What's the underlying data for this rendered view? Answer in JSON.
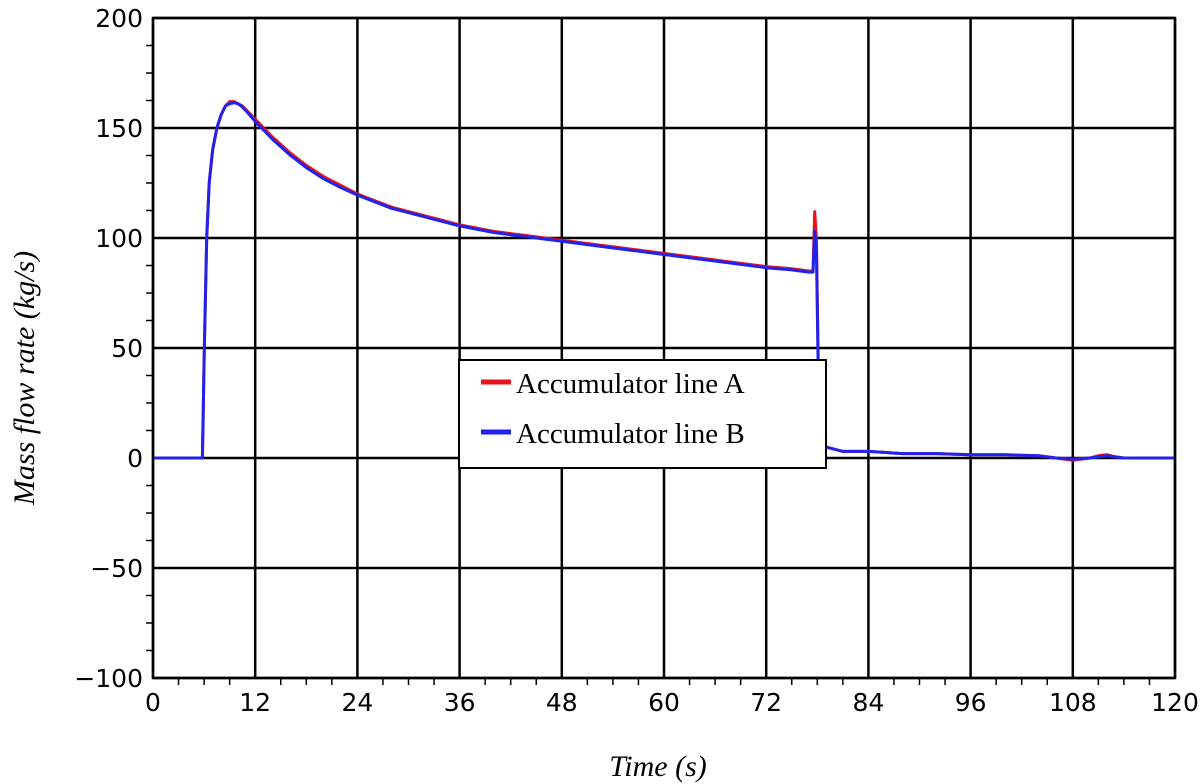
{
  "chart_data": {
    "type": "line",
    "title": "",
    "xlabel": "Time (s)",
    "ylabel": "Mass flow rate (kg/s)",
    "xlim": [
      0,
      120
    ],
    "ylim": [
      -100,
      200
    ],
    "x_ticks": [
      0,
      12,
      24,
      36,
      48,
      60,
      72,
      84,
      96,
      108,
      120
    ],
    "x_tick_labels": [
      "0",
      "12",
      "24",
      "36",
      "48",
      "60",
      "72",
      "84",
      "96",
      "108",
      "120"
    ],
    "y_ticks": [
      -100,
      -50,
      0,
      50,
      100,
      150,
      200
    ],
    "y_tick_labels": [
      "−100",
      "−50",
      "0",
      "50",
      "100",
      "150",
      "200"
    ],
    "grid": true,
    "legend_position": "center",
    "series": [
      {
        "name": "Accumulator line A",
        "color": "#e8141c",
        "x": [
          0,
          5.8,
          5.9,
          6.0,
          6.3,
          6.6,
          7.0,
          7.5,
          8.0,
          8.5,
          9.0,
          9.5,
          10.0,
          10.5,
          11.0,
          12.0,
          14.0,
          16.0,
          18.0,
          20.0,
          22.0,
          24.0,
          26.0,
          28.0,
          30.0,
          33.0,
          36.0,
          40.0,
          44.0,
          48.0,
          52.0,
          56.0,
          60.0,
          64.0,
          68.0,
          72.0,
          75.0,
          77.0,
          77.5,
          77.7,
          77.9,
          78.1,
          78.3,
          78.5,
          79.0,
          80.0,
          81.0,
          84.0,
          88.0,
          92.0,
          96.0,
          100.0,
          104.0,
          106.0,
          108.0,
          110.0,
          111.0,
          112.0,
          113.0,
          114.0,
          120.0
        ],
        "y": [
          0,
          0,
          20,
          45,
          100,
          125,
          140,
          150,
          156,
          160,
          162,
          162,
          161,
          160,
          158,
          154,
          146,
          139,
          133,
          128,
          124,
          120,
          117,
          114,
          112,
          109,
          106,
          103,
          101,
          99,
          97,
          95,
          93,
          91,
          89,
          87,
          86,
          85,
          85,
          112,
          100,
          45,
          8,
          6,
          5,
          4,
          3,
          3,
          2,
          2,
          1.5,
          1.5,
          1,
          0,
          -1,
          0,
          1,
          1.5,
          0.5,
          0,
          0
        ]
      },
      {
        "name": "Accumulator line B",
        "color": "#2222ee",
        "x": [
          0,
          5.8,
          5.9,
          6.0,
          6.3,
          6.6,
          7.0,
          7.5,
          8.0,
          8.5,
          9.0,
          9.5,
          10.0,
          10.5,
          11.0,
          12.0,
          14.0,
          16.0,
          18.0,
          20.0,
          22.0,
          24.0,
          26.0,
          28.0,
          30.0,
          33.0,
          36.0,
          40.0,
          44.0,
          48.0,
          52.0,
          56.0,
          60.0,
          64.0,
          68.0,
          72.0,
          75.0,
          77.0,
          77.5,
          77.7,
          77.9,
          78.1,
          78.3,
          78.5,
          79.0,
          80.0,
          81.0,
          84.0,
          88.0,
          92.0,
          96.0,
          100.0,
          104.0,
          106.0,
          108.0,
          110.0,
          111.0,
          112.0,
          113.0,
          114.0,
          120.0
        ],
        "y": [
          0,
          0,
          20,
          45,
          100,
          125,
          140,
          150,
          156,
          160,
          161,
          161.5,
          161,
          159.5,
          157.5,
          153,
          145,
          138,
          132,
          127,
          123,
          119.5,
          116.5,
          113.5,
          111.5,
          108.5,
          105.5,
          102.5,
          100.5,
          98.5,
          96.5,
          94.5,
          92.5,
          90.5,
          88.5,
          86.5,
          85.5,
          84.5,
          84.5,
          103,
          95,
          40,
          7,
          6,
          5,
          4,
          3,
          3,
          2,
          2,
          1.5,
          1.5,
          1,
          0,
          -0.5,
          0,
          0.5,
          1,
          0.5,
          0,
          0
        ]
      }
    ]
  }
}
